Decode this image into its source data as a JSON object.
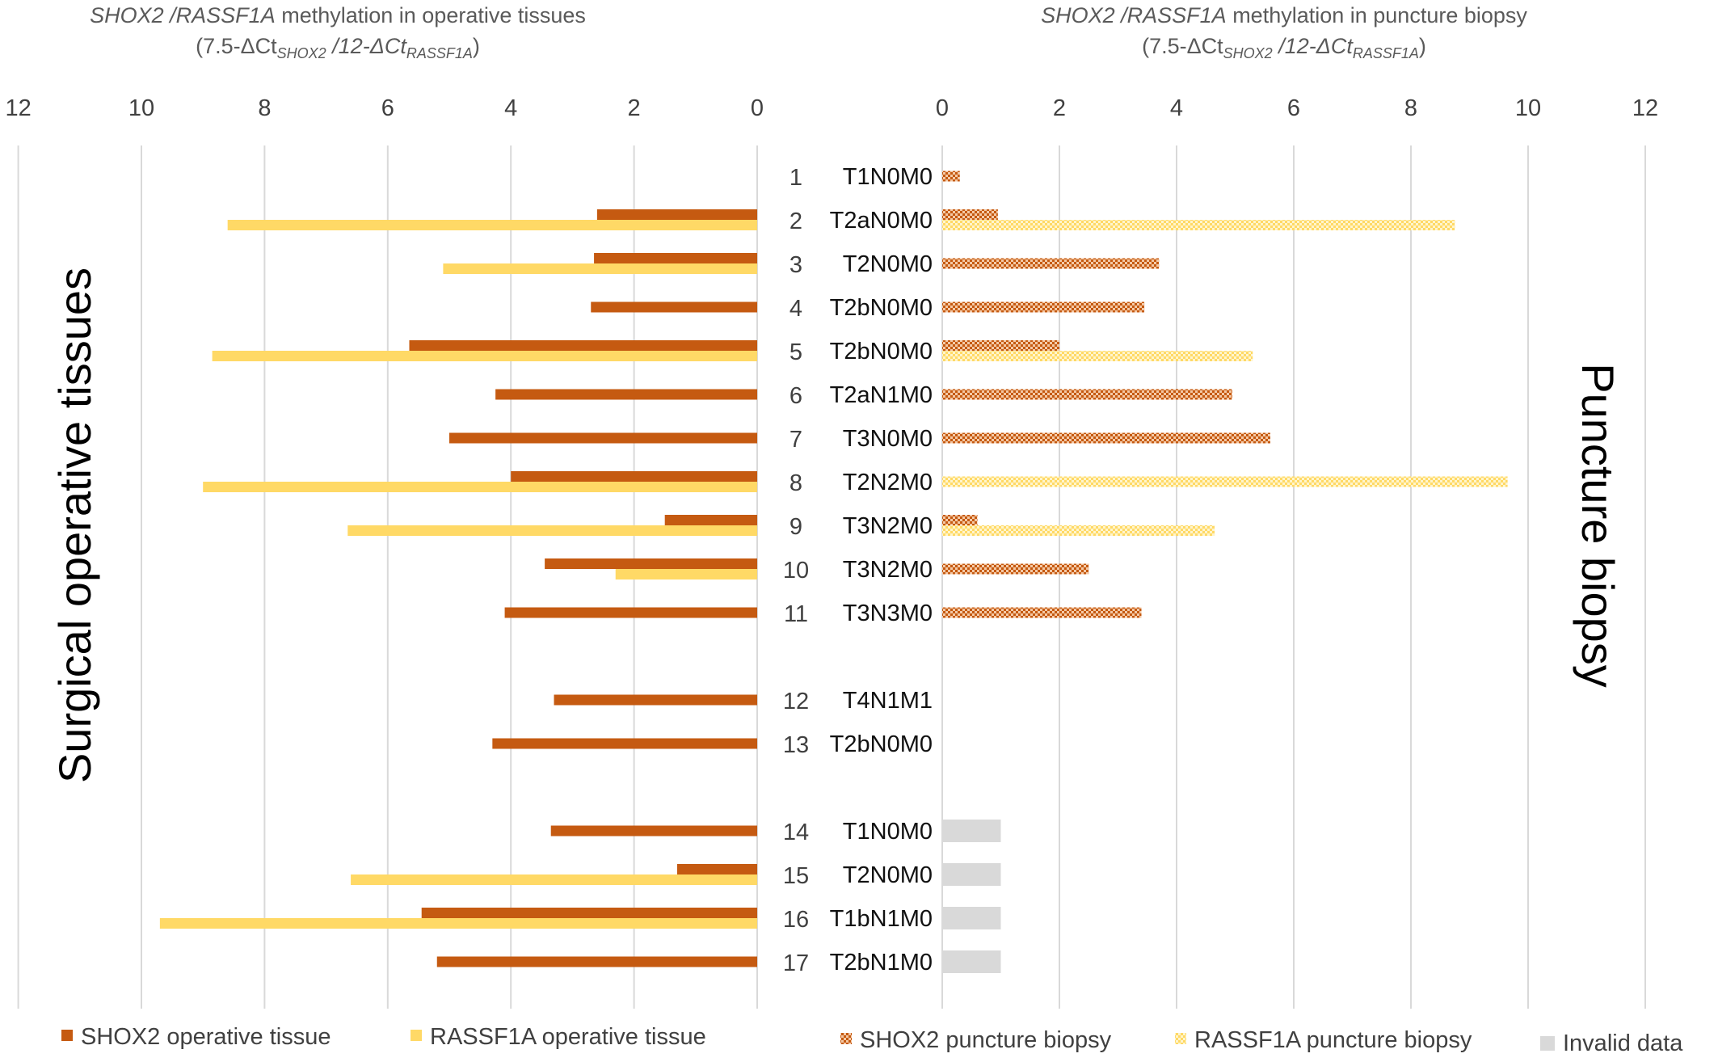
{
  "chart_data": {
    "type": "bar",
    "orientation": "horizontal",
    "colors": {
      "shox2": "#C55A11",
      "rassf1a": "#FFD966",
      "invalid": "#D9D9D9",
      "grid": "#D9D9D9"
    },
    "left_panel": {
      "title_gene1": "SHOX2",
      "title_sep": " /",
      "title_gene2": "RASSF1A",
      "title_rest": " methylation in operative tissues",
      "formula": {
        "open": "(7.5-ΔCt",
        "sub1": "SHOX2",
        "mid": " /",
        "mid2": "12-ΔCt",
        "sub2": "RASSF1A",
        "close": ")"
      },
      "axis_ticks": [
        "12",
        "10",
        "8",
        "6",
        "4",
        "2",
        "0"
      ],
      "xlim": [
        0,
        12
      ],
      "reversed": true,
      "side_label": "Surgical operative tissues"
    },
    "right_panel": {
      "title_gene1": "SHOX2",
      "title_sep": " /",
      "title_gene2": "RASSF1A",
      "title_rest": " methylation in puncture biopsy",
      "formula": {
        "open": "(7.5-ΔCt",
        "sub1": "SHOX2",
        "mid": " /",
        "mid2": "12-ΔCt",
        "sub2": "RASSF1A",
        "close": ")"
      },
      "axis_ticks": [
        "0",
        "2",
        "4",
        "6",
        "8",
        "10",
        "12"
      ],
      "xlim": [
        0,
        12
      ],
      "side_label": "Puncture biopsy"
    },
    "cases": [
      {
        "id": "1",
        "stage": "T1N0M0",
        "shox2_op": null,
        "rassf1a_op": null,
        "shox2_bx": 0.3,
        "rassf1a_bx": null,
        "bx_invalid": false
      },
      {
        "id": "2",
        "stage": "T2aN0M0",
        "shox2_op": 2.6,
        "rassf1a_op": 8.6,
        "shox2_bx": 0.95,
        "rassf1a_bx": 8.75,
        "bx_invalid": false
      },
      {
        "id": "3",
        "stage": "T2N0M0",
        "shox2_op": 2.65,
        "rassf1a_op": 5.1,
        "shox2_bx": 3.7,
        "rassf1a_bx": null,
        "bx_invalid": false
      },
      {
        "id": "4",
        "stage": "T2bN0M0",
        "shox2_op": 2.7,
        "rassf1a_op": null,
        "shox2_bx": 3.45,
        "rassf1a_bx": null,
        "bx_invalid": false
      },
      {
        "id": "5",
        "stage": "T2bN0M0",
        "shox2_op": 5.65,
        "rassf1a_op": 8.85,
        "shox2_bx": 2.0,
        "rassf1a_bx": 5.3,
        "bx_invalid": false
      },
      {
        "id": "6",
        "stage": "T2aN1M0",
        "shox2_op": 4.25,
        "rassf1a_op": null,
        "shox2_bx": 4.95,
        "rassf1a_bx": null,
        "bx_invalid": false
      },
      {
        "id": "7",
        "stage": "T3N0M0",
        "shox2_op": 5.0,
        "rassf1a_op": null,
        "shox2_bx": 5.6,
        "rassf1a_bx": null,
        "bx_invalid": false
      },
      {
        "id": "8",
        "stage": "T2N2M0",
        "shox2_op": 4.0,
        "rassf1a_op": 9.0,
        "shox2_bx": null,
        "rassf1a_bx": 9.65,
        "bx_invalid": false
      },
      {
        "id": "9",
        "stage": "T3N2M0",
        "shox2_op": 1.5,
        "rassf1a_op": 6.65,
        "shox2_bx": 0.6,
        "rassf1a_bx": 4.65,
        "bx_invalid": false
      },
      {
        "id": "10",
        "stage": "T3N2M0",
        "shox2_op": 3.45,
        "rassf1a_op": 2.3,
        "shox2_bx": 2.5,
        "rassf1a_bx": null,
        "bx_invalid": false
      },
      {
        "id": "11",
        "stage": "T3N3M0",
        "shox2_op": 4.1,
        "rassf1a_op": null,
        "shox2_bx": 3.4,
        "rassf1a_bx": null,
        "bx_invalid": false
      },
      {
        "id": "12",
        "stage": "T4N1M1",
        "shox2_op": 3.3,
        "rassf1a_op": null,
        "shox2_bx": null,
        "rassf1a_bx": null,
        "bx_invalid": false
      },
      {
        "id": "13",
        "stage": "T2bN0M0",
        "shox2_op": 4.3,
        "rassf1a_op": null,
        "shox2_bx": null,
        "rassf1a_bx": null,
        "bx_invalid": false
      },
      {
        "id": "14",
        "stage": "T1N0M0",
        "shox2_op": 3.35,
        "rassf1a_op": null,
        "shox2_bx": null,
        "rassf1a_bx": null,
        "bx_invalid": true
      },
      {
        "id": "15",
        "stage": "T2N0M0",
        "shox2_op": 1.3,
        "rassf1a_op": 6.6,
        "shox2_bx": null,
        "rassf1a_bx": null,
        "bx_invalid": true
      },
      {
        "id": "16",
        "stage": "T1bN1M0",
        "shox2_op": 5.45,
        "rassf1a_op": 9.7,
        "shox2_bx": null,
        "rassf1a_bx": null,
        "bx_invalid": true
      },
      {
        "id": "17",
        "stage": "T2bN1M0",
        "shox2_op": 5.2,
        "rassf1a_op": null,
        "shox2_bx": null,
        "rassf1a_bx": null,
        "bx_invalid": true
      }
    ],
    "invalid_bar_value": 1.0,
    "legend": [
      {
        "key": "shox2_op",
        "label": "SHOX2 operative tissue"
      },
      {
        "key": "rassf1a_op",
        "label": "RASSF1A operative tissue"
      },
      {
        "key": "shox2_bx",
        "label": "SHOX2 puncture biopsy"
      },
      {
        "key": "rassf1a_bx",
        "label": "RASSF1A puncture biopsy"
      },
      {
        "key": "invalid",
        "label": "Invalid data"
      }
    ]
  }
}
